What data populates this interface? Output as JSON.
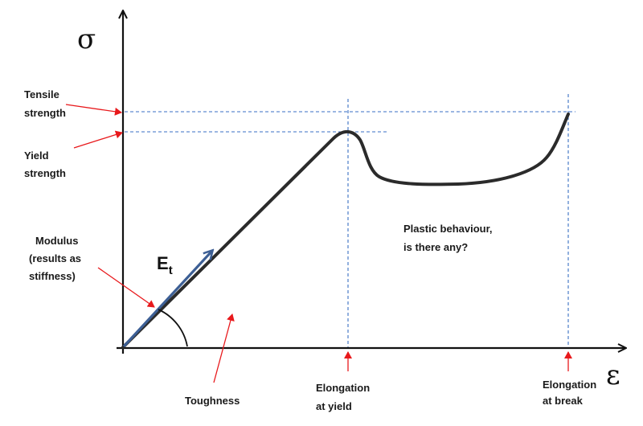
{
  "axes": {
    "y_symbol": "σ",
    "x_symbol": "ε"
  },
  "modulus_symbol": {
    "main": "E",
    "subscript": "t"
  },
  "labels": {
    "tensile_strength": [
      "Tensile",
      "strength"
    ],
    "yield_strength": [
      "Yield",
      "strength"
    ],
    "modulus": [
      "Modulus",
      "(results as",
      "stiffness)"
    ],
    "plastic_behaviour": [
      "Plastic behaviour,",
      "is there any?"
    ],
    "toughness": "Toughness",
    "elongation_yield": [
      "Elongation",
      "at yield"
    ],
    "elongation_break": [
      "Elongation",
      "at break"
    ]
  },
  "colors": {
    "curve": "#2b2b2b",
    "modulus_arrow": "#3d5f95",
    "guides": "#3a6fc4",
    "pointers": "#e8191c",
    "axes": "#111111"
  }
}
